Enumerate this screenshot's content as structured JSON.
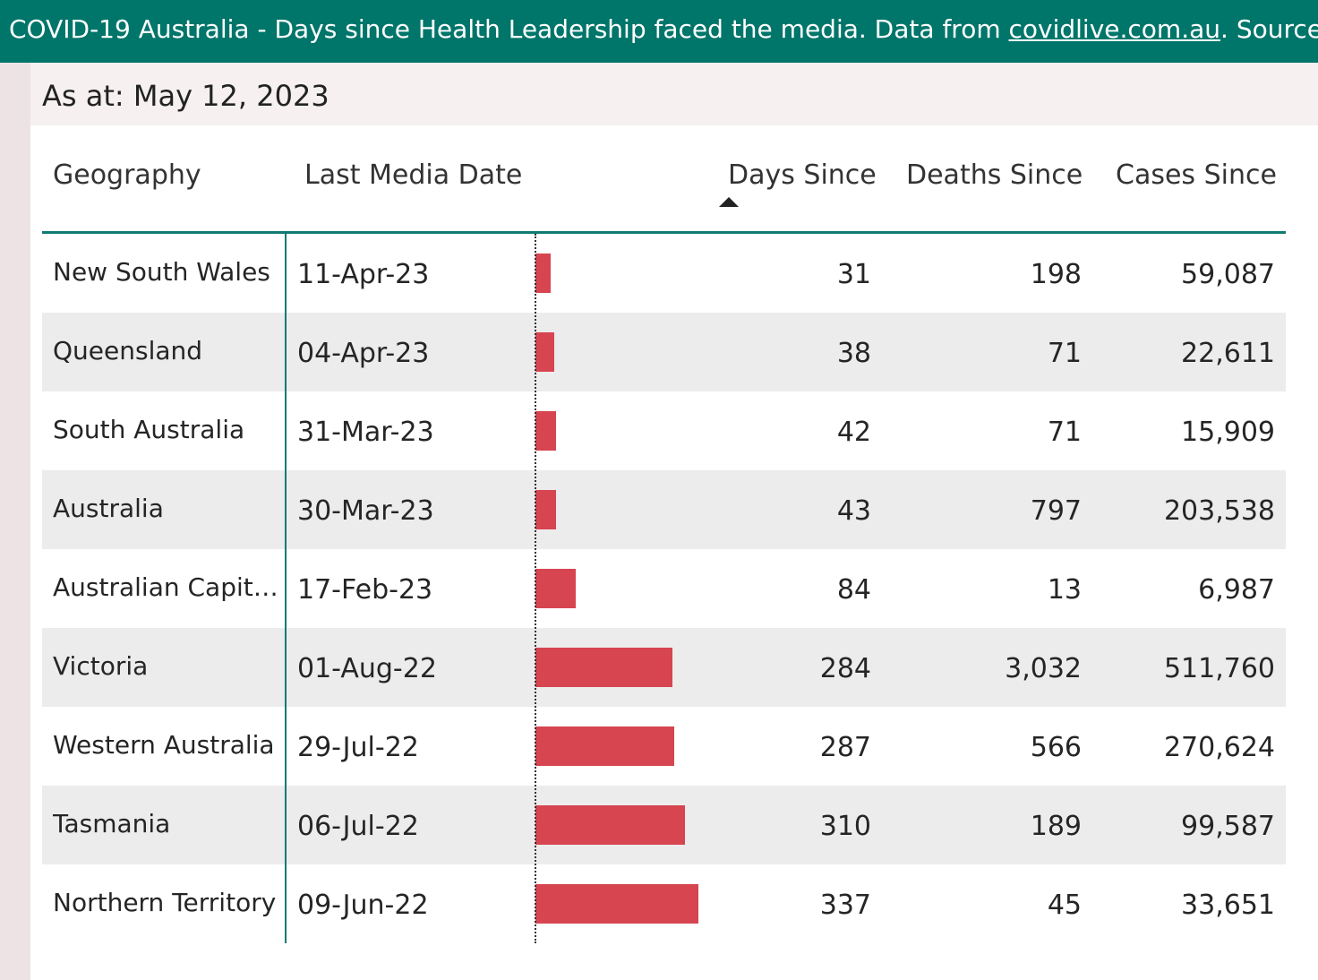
{
  "banner": {
    "text_before": "COVID-19 Australia - Days since Health Leadership faced the media. Data from ",
    "link": "covidlive.com.au",
    "text_after": ". Source files and"
  },
  "as_at": "As at: May 12, 2023",
  "table": {
    "columns": {
      "geography": "Geography",
      "last_media_date": "Last Media Date",
      "days_since": "Days Since",
      "deaths_since": "Deaths Since",
      "cases_since": "Cases Since"
    },
    "sort": {
      "column": "days_since",
      "direction": "ascending"
    },
    "bar_color": "#d64550",
    "accent_color": "#0f7b70",
    "rows": [
      {
        "geography": "New South Wales",
        "date": "11-Apr-23",
        "days": 31,
        "deaths": "198",
        "cases": "59,087"
      },
      {
        "geography": "Queensland",
        "date": "04-Apr-23",
        "days": 38,
        "deaths": "71",
        "cases": "22,611"
      },
      {
        "geography": "South Australia",
        "date": "31-Mar-23",
        "days": 42,
        "deaths": "71",
        "cases": "15,909"
      },
      {
        "geography": "Australia",
        "date": "30-Mar-23",
        "days": 43,
        "deaths": "797",
        "cases": "203,538"
      },
      {
        "geography": "Australian Capital...",
        "date": "17-Feb-23",
        "days": 84,
        "deaths": "13",
        "cases": "6,987"
      },
      {
        "geography": "Victoria",
        "date": "01-Aug-22",
        "days": 284,
        "deaths": "3,032",
        "cases": "511,760"
      },
      {
        "geography": "Western Australia",
        "date": "29-Jul-22",
        "days": 287,
        "deaths": "566",
        "cases": "270,624"
      },
      {
        "geography": "Tasmania",
        "date": "06-Jul-22",
        "days": 310,
        "deaths": "189",
        "cases": "99,587"
      },
      {
        "geography": "Northern Territory",
        "date": "09-Jun-22",
        "days": 337,
        "deaths": "45",
        "cases": "33,651"
      }
    ]
  }
}
